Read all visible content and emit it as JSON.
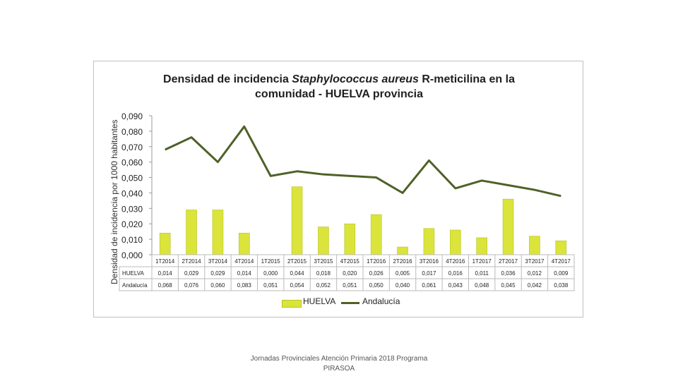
{
  "chart_data": {
    "type": "bar",
    "title_line1_prefix": "Densidad de incidencia ",
    "title_line1_italic": "Staphylococcus aureus",
    "title_line1_suffix": " R-meticilina en la",
    "title_line2": "comunidad - HUELVA provincia",
    "ylabel": "Densidad de incidencia por 1000 habitantes",
    "ylim": [
      0,
      0.09
    ],
    "yticks": [
      "0,090",
      "0,080",
      "0,070",
      "0,060",
      "0,050",
      "0,040",
      "0,030",
      "0,020",
      "0,010",
      "0,000"
    ],
    "categories": [
      "1T2014",
      "2T2014",
      "3T2014",
      "4T2014",
      "1T2015",
      "2T2015",
      "3T2015",
      "4T2015",
      "1T2016",
      "2T2016",
      "3T2016",
      "4T2016",
      "1T2017",
      "2T2017",
      "3T2017",
      "4T2017"
    ],
    "series": [
      {
        "name": "HUELVA",
        "kind": "bar",
        "color": "#dbe43a",
        "values": [
          0.014,
          0.029,
          0.029,
          0.014,
          0.0,
          0.044,
          0.018,
          0.02,
          0.026,
          0.005,
          0.017,
          0.016,
          0.011,
          0.036,
          0.012,
          0.009
        ],
        "labels": [
          "0,014",
          "0,029",
          "0,029",
          "0,014",
          "0,000",
          "0,044",
          "0,018",
          "0,020",
          "0,026",
          "0,005",
          "0,017",
          "0,016",
          "0,011",
          "0,036",
          "0,012",
          "0,009"
        ]
      },
      {
        "name": "Andalucía",
        "kind": "line",
        "color": "#4f6128",
        "values": [
          0.068,
          0.076,
          0.06,
          0.083,
          0.051,
          0.054,
          0.052,
          0.051,
          0.05,
          0.04,
          0.061,
          0.043,
          0.048,
          0.045,
          0.042,
          0.038
        ],
        "labels": [
          "0,068",
          "0,076",
          "0,060",
          "0,083",
          "0,051",
          "0,054",
          "0,052",
          "0,051",
          "0,050",
          "0,040",
          "0,061",
          "0,043",
          "0,048",
          "0,045",
          "0,042",
          "0,038"
        ]
      }
    ],
    "table_row_labels": [
      "HUELVA",
      "Andalucía"
    ],
    "legend": [
      "HUELVA",
      "Andalucía"
    ]
  },
  "footer": {
    "line1": "Jornadas Provinciales Atención Primaria 2018 Programa",
    "line2": "PIRASOA"
  }
}
